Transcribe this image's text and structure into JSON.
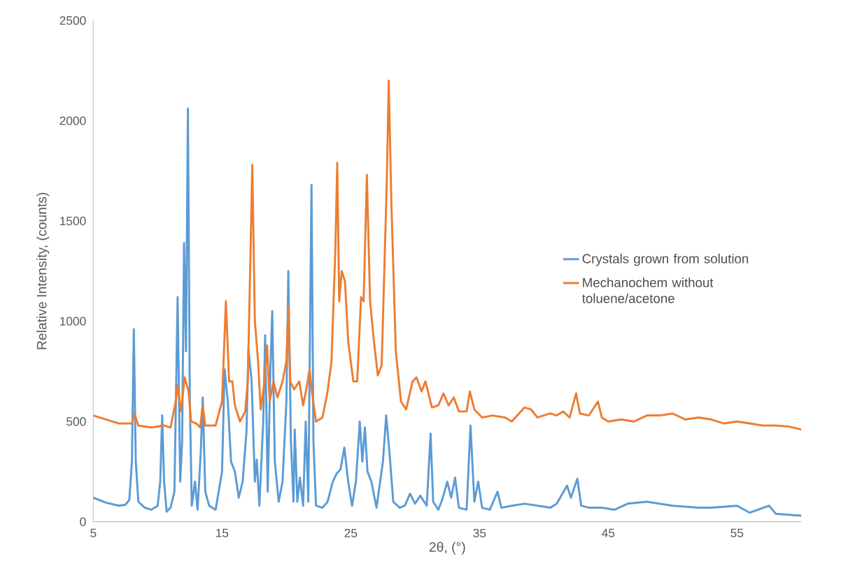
{
  "chart_data": {
    "type": "line",
    "xlabel": "2θ, (°)",
    "ylabel": "Relative Intensity, (counts)",
    "xlim": [
      5,
      60
    ],
    "xticks": [
      5,
      15,
      25,
      35,
      45,
      55
    ],
    "ylim": [
      0,
      2500
    ],
    "yticks": [
      0,
      500,
      1000,
      1500,
      2000,
      2500
    ],
    "grid": false,
    "legend": "right",
    "marker": "none",
    "line_style": "solid",
    "series": [
      {
        "name": "Crystals grown from solution",
        "color": "#5b9bd5",
        "x": [
          5,
          6,
          7,
          7.5,
          7.8,
          8.0,
          8.15,
          8.3,
          8.5,
          9,
          9.5,
          10.0,
          10.2,
          10.35,
          10.5,
          10.7,
          11.0,
          11.3,
          11.55,
          11.75,
          11.9,
          12.05,
          12.2,
          12.35,
          12.5,
          12.65,
          12.9,
          13.1,
          13.35,
          13.5,
          13.7,
          14.0,
          14.5,
          15.0,
          15.2,
          15.45,
          15.7,
          16.0,
          16.3,
          16.6,
          16.9,
          17.05,
          17.3,
          17.55,
          17.7,
          17.9,
          18.2,
          18.35,
          18.55,
          18.75,
          18.9,
          19.1,
          19.4,
          19.7,
          20.0,
          20.15,
          20.35,
          20.55,
          20.65,
          20.85,
          21.05,
          21.3,
          21.5,
          21.7,
          21.95,
          22.1,
          22.3,
          22.8,
          23.2,
          23.6,
          23.9,
          24.2,
          24.5,
          24.8,
          25.1,
          25.4,
          25.7,
          25.9,
          26.1,
          26.3,
          26.6,
          27.0,
          27.5,
          27.75,
          28.0,
          28.3,
          28.8,
          29.2,
          29.6,
          30.0,
          30.4,
          30.9,
          31.2,
          31.4,
          31.8,
          32.1,
          32.5,
          32.8,
          33.1,
          33.4,
          34.0,
          34.3,
          34.6,
          34.9,
          35.2,
          35.8,
          36.4,
          36.7,
          37.5,
          38.5,
          39.5,
          40.5,
          41.0,
          41.8,
          42.1,
          42.6,
          42.9,
          43.5,
          44.5,
          45.5,
          46.5,
          48,
          50,
          52,
          53,
          55,
          56,
          57.5,
          58,
          60
        ],
        "values": [
          120,
          95,
          80,
          85,
          110,
          300,
          960,
          300,
          100,
          70,
          60,
          80,
          200,
          530,
          200,
          50,
          70,
          150,
          1120,
          200,
          400,
          1390,
          850,
          2060,
          600,
          80,
          200,
          60,
          350,
          620,
          150,
          80,
          60,
          250,
          760,
          600,
          300,
          250,
          120,
          200,
          450,
          860,
          700,
          200,
          310,
          80,
          500,
          930,
          150,
          750,
          1050,
          300,
          100,
          200,
          600,
          1250,
          400,
          100,
          460,
          100,
          220,
          80,
          500,
          100,
          1680,
          400,
          80,
          70,
          100,
          200,
          240,
          260,
          370,
          200,
          80,
          200,
          500,
          300,
          470,
          250,
          200,
          70,
          300,
          530,
          350,
          100,
          70,
          80,
          140,
          90,
          130,
          80,
          440,
          100,
          60,
          110,
          200,
          120,
          220,
          70,
          60,
          480,
          100,
          200,
          70,
          60,
          150,
          70,
          80,
          90,
          80,
          70,
          90,
          180,
          120,
          215,
          80,
          70,
          70,
          60,
          90,
          100,
          80,
          70,
          70,
          80,
          45,
          80,
          40,
          30
        ]
      },
      {
        "name": "Mechanochem without toluene/acetone",
        "color": "#ed7d31",
        "x": [
          5,
          6,
          7,
          8,
          8.2,
          8.5,
          9.5,
          10.5,
          11.0,
          11.4,
          11.55,
          11.8,
          12.1,
          12.4,
          12.6,
          13.0,
          13.3,
          13.5,
          13.7,
          14.5,
          15.0,
          15.3,
          15.55,
          15.8,
          16.0,
          16.4,
          16.8,
          17.0,
          17.2,
          17.35,
          17.55,
          17.8,
          18.0,
          18.3,
          18.5,
          18.7,
          19.0,
          19.3,
          19.7,
          20.0,
          20.15,
          20.3,
          20.6,
          21.0,
          21.3,
          21.6,
          21.8,
          22.0,
          22.3,
          22.8,
          23.2,
          23.5,
          23.8,
          23.95,
          24.1,
          24.3,
          24.55,
          24.8,
          25.2,
          25.5,
          25.8,
          26.0,
          26.25,
          26.5,
          26.8,
          27.1,
          27.4,
          27.8,
          27.95,
          28.15,
          28.5,
          28.9,
          29.3,
          29.8,
          30.1,
          30.5,
          30.8,
          31.3,
          31.8,
          32.2,
          32.6,
          33.0,
          33.4,
          34.0,
          34.25,
          34.6,
          35.2,
          36.0,
          37,
          37.5,
          38.5,
          39,
          39.5,
          40.5,
          41,
          41.5,
          42,
          42.5,
          42.8,
          43.5,
          44.2,
          44.5,
          45,
          46,
          47,
          48,
          49,
          50,
          51,
          52,
          53,
          54,
          55,
          56,
          57,
          58,
          59,
          60
        ],
        "values": [
          530,
          510,
          490,
          490,
          540,
          480,
          470,
          480,
          470,
          600,
          680,
          550,
          720,
          650,
          500,
          490,
          470,
          580,
          480,
          480,
          600,
          1100,
          700,
          700,
          580,
          500,
          550,
          700,
          1300,
          1780,
          1000,
          800,
          560,
          700,
          880,
          600,
          700,
          620,
          700,
          800,
          1070,
          700,
          660,
          700,
          580,
          680,
          760,
          640,
          500,
          520,
          650,
          800,
          1350,
          1790,
          1100,
          1250,
          1200,
          900,
          700,
          700,
          1120,
          1100,
          1730,
          1100,
          900,
          730,
          780,
          1700,
          2200,
          1600,
          850,
          600,
          560,
          700,
          720,
          650,
          700,
          570,
          580,
          640,
          580,
          620,
          550,
          550,
          650,
          560,
          520,
          530,
          520,
          500,
          570,
          560,
          520,
          540,
          530,
          550,
          520,
          640,
          540,
          530,
          600,
          520,
          500,
          510,
          500,
          530,
          530,
          540,
          510,
          520,
          510,
          490,
          500,
          490,
          480,
          480,
          475,
          460
        ]
      }
    ]
  }
}
